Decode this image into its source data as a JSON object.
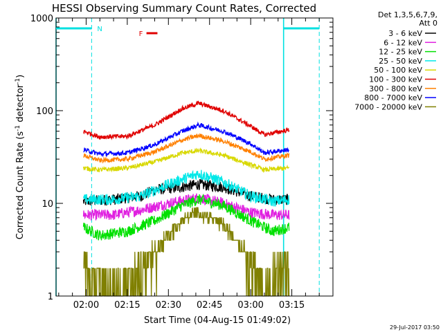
{
  "chart_data": {
    "type": "line",
    "title": "HESSI Observing Summary Count Rates, Corrected",
    "xlabel": "Start Time (04-Aug-15 01:49:02)",
    "ylabel_parts": [
      "Corrected Count Rate (s",
      "-1",
      " detector",
      "-1",
      ")"
    ],
    "y_scale": "log",
    "ylim": [
      1,
      1000
    ],
    "y_ticks": [
      {
        "value": 1,
        "label": "1"
      },
      {
        "value": 10,
        "label": "10"
      },
      {
        "value": 100,
        "label": "100"
      },
      {
        "value": 1000,
        "label": "1000"
      }
    ],
    "x_range_minutes": [
      "01:49:02",
      "03:30:00"
    ],
    "x_ticks": [
      {
        "value": "02:00",
        "label": "02:00"
      },
      {
        "value": "02:15",
        "label": "02:15"
      },
      {
        "value": "02:30",
        "label": "02:30"
      },
      {
        "value": "02:45",
        "label": "02:45"
      },
      {
        "value": "03:00",
        "label": "03:00"
      },
      {
        "value": "03:15",
        "label": "03:15"
      }
    ],
    "legend_position": "outside-right",
    "legend_header": [
      "Det 1,3,5,6,7,9,",
      "Att 0"
    ],
    "series": [
      {
        "name": "3 - 6 keV",
        "color": "#000000",
        "times": [
          "01:59",
          "02:10",
          "02:20",
          "02:25",
          "02:35",
          "02:41",
          "02:50",
          "03:00",
          "03:08",
          "03:12",
          "03:14"
        ],
        "values": [
          10.5,
          11,
          12,
          14,
          15,
          16,
          15,
          12,
          11,
          11,
          11
        ]
      },
      {
        "name": "6 - 12 keV",
        "color": "#e020e0",
        "times": [
          "01:59",
          "02:10",
          "02:20",
          "02:30",
          "02:41",
          "02:50",
          "03:00",
          "03:08",
          "03:14"
        ],
        "values": [
          7.5,
          7.5,
          8.5,
          10,
          11.5,
          10,
          8,
          7.5,
          7.5
        ]
      },
      {
        "name": "12 - 25 keV",
        "color": "#00e000",
        "times": [
          "01:59",
          "02:05",
          "02:15",
          "02:25",
          "02:35",
          "02:41",
          "02:50",
          "03:00",
          "03:08",
          "03:14"
        ],
        "values": [
          5.5,
          4.5,
          5,
          6.5,
          9.5,
          11,
          9.5,
          6.5,
          5,
          5.5
        ]
      },
      {
        "name": "25 - 50 keV",
        "color": "#00e8e8",
        "times": [
          "01:59",
          "02:10",
          "02:20",
          "02:30",
          "02:41",
          "02:50",
          "03:00",
          "03:08",
          "03:14"
        ],
        "values": [
          11,
          11,
          12,
          16,
          21,
          17,
          12,
          10.5,
          11
        ]
      },
      {
        "name": "50 - 100 keV",
        "color": "#d8d800",
        "times": [
          "01:59",
          "02:05",
          "02:15",
          "02:25",
          "02:35",
          "02:41",
          "02:50",
          "03:00",
          "03:05",
          "03:14"
        ],
        "values": [
          24,
          23,
          24,
          28,
          35,
          37,
          33,
          26,
          23,
          24
        ]
      },
      {
        "name": "100 - 300 keV",
        "color": "#e00000",
        "times": [
          "01:59",
          "02:05",
          "02:15",
          "02:25",
          "02:35",
          "02:41",
          "02:50",
          "03:00",
          "03:05",
          "03:14"
        ],
        "values": [
          60,
          52,
          53,
          70,
          105,
          120,
          100,
          68,
          55,
          62
        ]
      },
      {
        "name": "300 - 800 keV",
        "color": "#ff8000",
        "times": [
          "01:59",
          "02:05",
          "02:15",
          "02:25",
          "02:35",
          "02:41",
          "02:50",
          "03:00",
          "03:05",
          "03:14"
        ],
        "values": [
          33,
          29,
          30,
          36,
          48,
          54,
          47,
          36,
          30,
          33
        ]
      },
      {
        "name": "800 - 7000 keV",
        "color": "#0000ff",
        "times": [
          "01:59",
          "02:05",
          "02:15",
          "02:25",
          "02:35",
          "02:41",
          "02:50",
          "03:00",
          "03:05",
          "03:14"
        ],
        "values": [
          38,
          34,
          35,
          43,
          60,
          70,
          60,
          44,
          35,
          38
        ]
      },
      {
        "name": "7000 - 20000 keV",
        "color": "#808000",
        "times": [
          "01:59",
          "02:05",
          "02:15",
          "02:25",
          "02:35",
          "02:41",
          "02:50",
          "03:00",
          "03:05",
          "03:14"
        ],
        "values": [
          2.5,
          1.7,
          1.7,
          3,
          6.5,
          8,
          6,
          2.5,
          1.7,
          2.5
        ]
      }
    ],
    "annotations": [
      {
        "label": "N",
        "color": "#00e0e0",
        "description": "night interval marker"
      },
      {
        "label": "F",
        "color": "#e00000",
        "description": "flare flag"
      }
    ],
    "vertical_markers": [
      {
        "time": "01:49:02",
        "color": "#00e0e0",
        "style": "solid"
      },
      {
        "time": "02:02",
        "color": "#00e0e0",
        "style": "dashed"
      },
      {
        "time": "03:12",
        "color": "#00e0e0",
        "style": "solid"
      },
      {
        "time": "03:25",
        "color": "#00e0e0",
        "style": "dashed"
      }
    ],
    "night_intervals": [
      {
        "start": "01:49:02",
        "end": "02:02"
      },
      {
        "start": "03:12",
        "end": "03:25"
      }
    ],
    "flare_interval": {
      "start": "02:22",
      "end": "02:26"
    }
  },
  "footer": {
    "timestamp": "29-Jul-2017 03:50"
  }
}
